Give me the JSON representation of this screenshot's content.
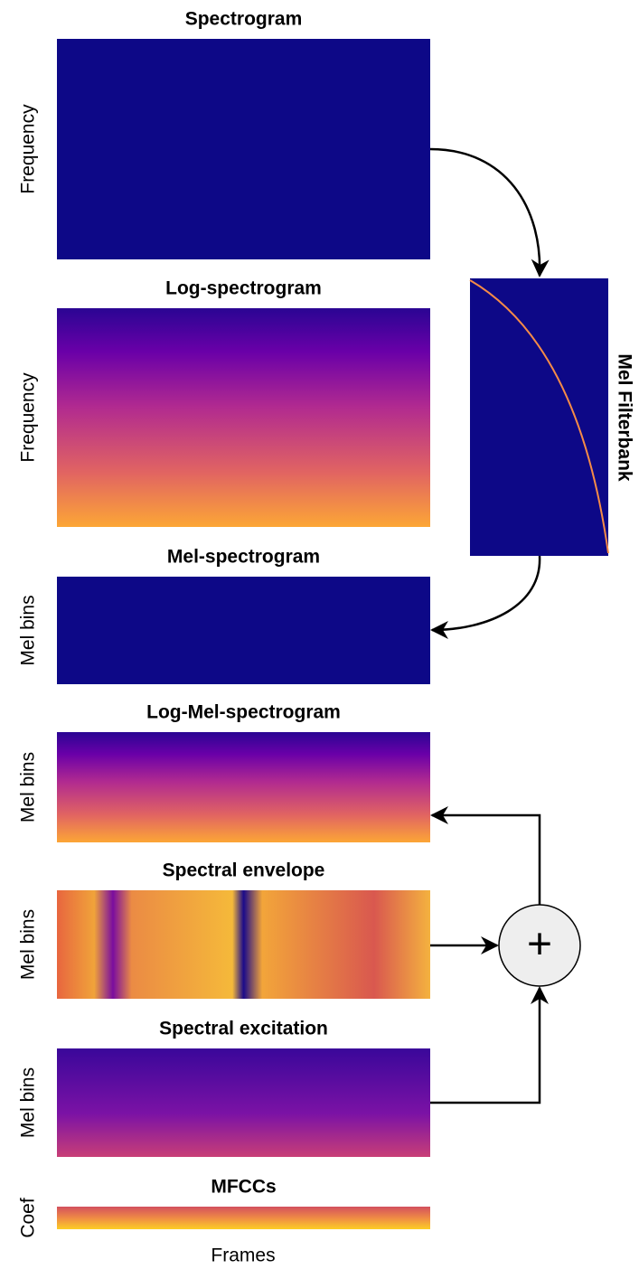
{
  "panels": [
    {
      "title": "Spectrogram",
      "ylabel": "Frequency"
    },
    {
      "title": "Log-spectrogram",
      "ylabel": "Frequency"
    },
    {
      "title": "Mel-spectrogram",
      "ylabel": "Mel bins"
    },
    {
      "title": "Log-Mel-spectrogram",
      "ylabel": "Mel bins"
    },
    {
      "title": "Spectral envelope",
      "ylabel": "Mel bins"
    },
    {
      "title": "Spectral excitation",
      "ylabel": "Mel bins"
    },
    {
      "title": "MFCCs",
      "ylabel": "Coef"
    }
  ],
  "filterbank": {
    "label": "Mel Filterbank"
  },
  "operator": "+",
  "xlabel": "Frames"
}
